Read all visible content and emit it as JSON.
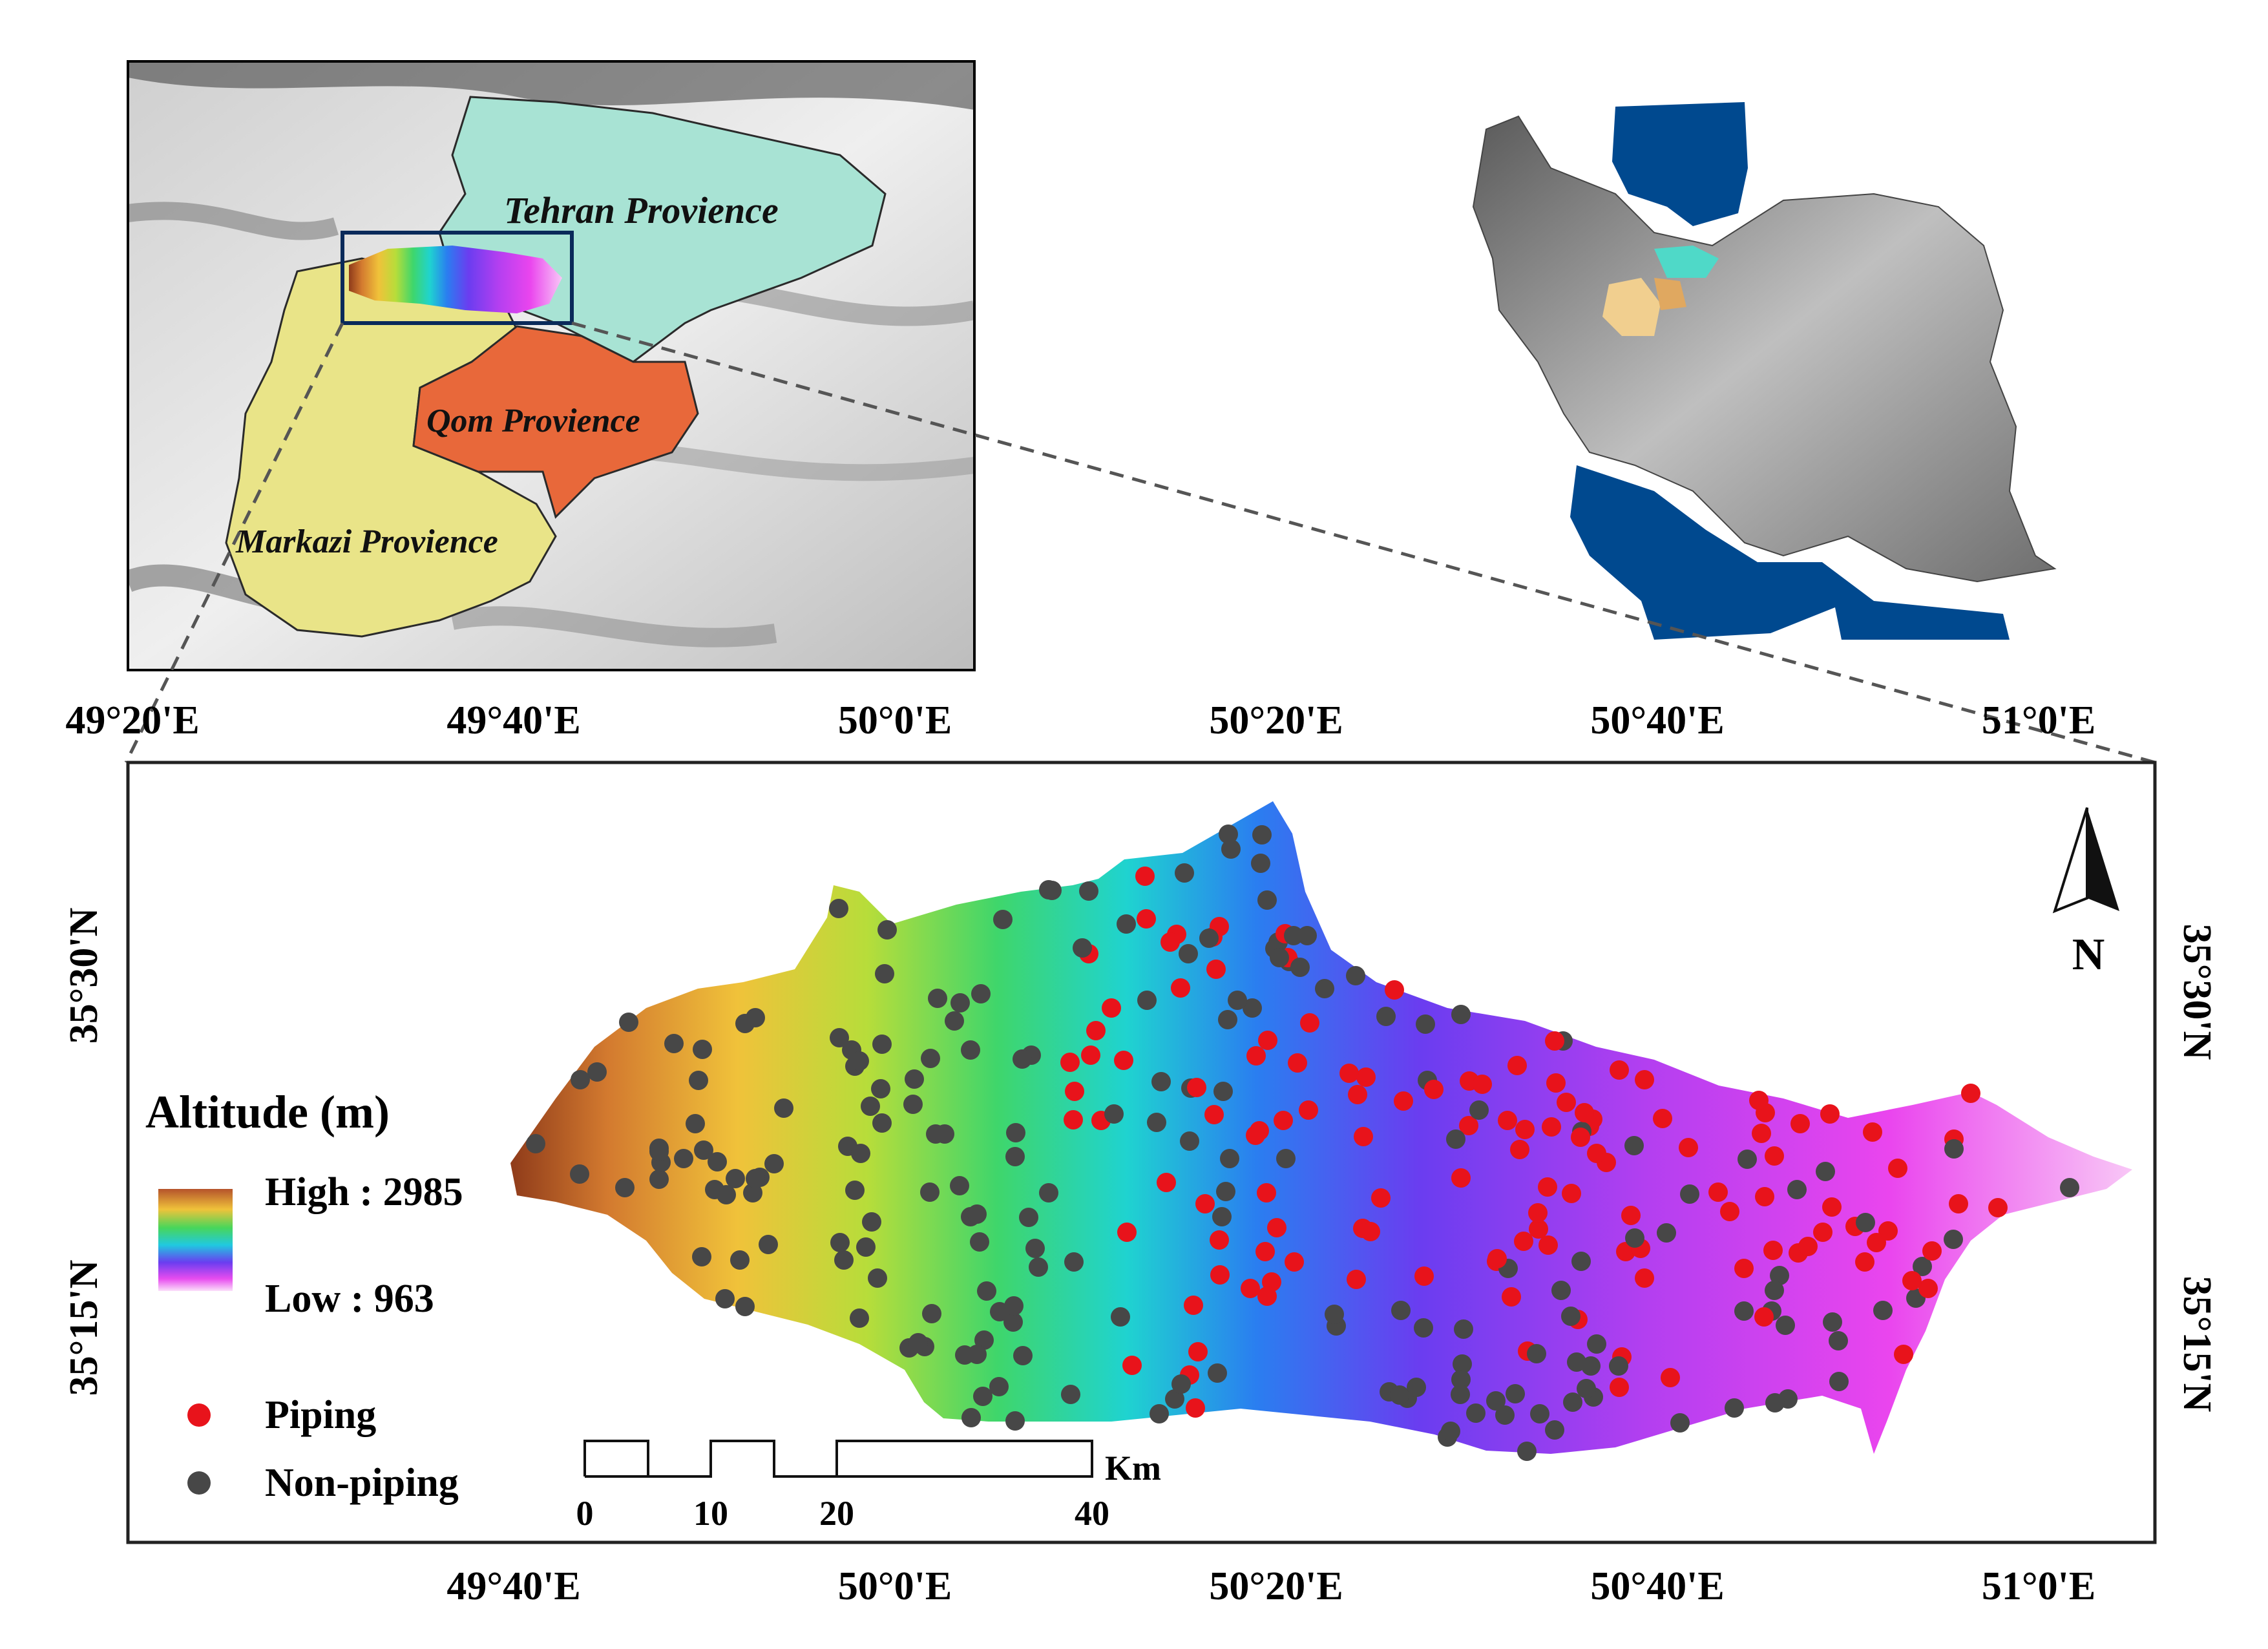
{
  "inset_provinces": {
    "tehran": "Tehran Provience",
    "qom": "Qom Provience",
    "markazi": "Markazi Provience"
  },
  "top_axis_labels": [
    "49°20'E",
    "49°40'E",
    "50°0'E",
    "50°20'E",
    "50°40'E",
    "51°0'E"
  ],
  "bottom_axis_labels": [
    "49°40'E",
    "50°0'E",
    "50°20'E",
    "50°40'E",
    "51°0'E"
  ],
  "left_axis_labels": [
    "35°30'N",
    "35°15'N"
  ],
  "right_axis_labels": [
    "35°30'N",
    "35°15'N"
  ],
  "legend": {
    "title": "Altitude (m)",
    "high": "High : 2985",
    "low": "Low : 963",
    "piping": "Piping",
    "non_piping": "Non-piping",
    "piping_color": "#e8131b",
    "non_piping_color": "#474747"
  },
  "north_arrow": {
    "label": "N"
  },
  "scale_bar": {
    "ticks": [
      "0",
      "10",
      "20",
      "40"
    ],
    "unit": "Km"
  },
  "colors": {
    "tehran": "#a8e3d4",
    "qom": "#e8683a",
    "markazi": "#e9e488",
    "iran_sea": "#00498f",
    "inset_box": "#0a2a5a"
  }
}
